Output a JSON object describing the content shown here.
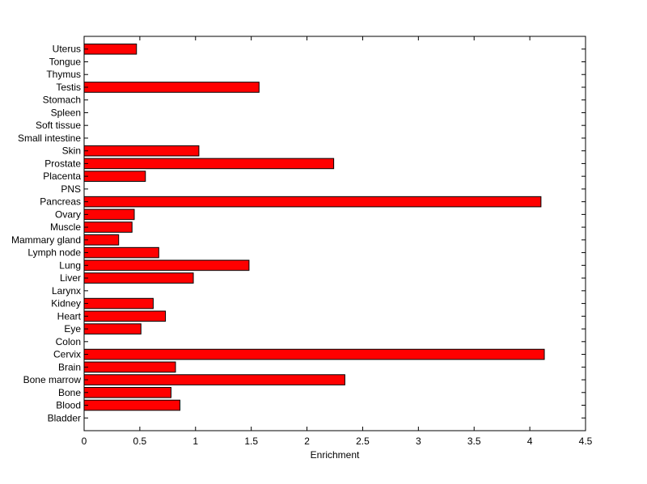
{
  "chart_data": {
    "type": "bar",
    "orientation": "horizontal",
    "title": "",
    "xlabel": "Enrichment",
    "ylabel": "",
    "xlim": [
      0,
      4.5
    ],
    "xticks": [
      0,
      0.5,
      1,
      1.5,
      2,
      2.5,
      3,
      3.5,
      4,
      4.5
    ],
    "xtick_labels": [
      "0",
      "0.5",
      "1",
      "1.5",
      "2",
      "2.5",
      "3",
      "3.5",
      "4",
      "4.5"
    ],
    "grid": false,
    "legend": "none",
    "bar_color": "#ff0000",
    "bar_edge_color": "#000000",
    "categories": [
      "Bladder",
      "Blood",
      "Bone",
      "Bone marrow",
      "Brain",
      "Cervix",
      "Colon",
      "Eye",
      "Heart",
      "Kidney",
      "Larynx",
      "Liver",
      "Lung",
      "Lymph node",
      "Mammary gland",
      "Muscle",
      "Ovary",
      "Pancreas",
      "PNS",
      "Placenta",
      "Prostate",
      "Skin",
      "Small intestine",
      "Soft tissue",
      "Spleen",
      "Stomach",
      "Testis",
      "Thymus",
      "Tongue",
      "Uterus"
    ],
    "values": [
      0,
      0.86,
      0.78,
      2.34,
      0.82,
      4.13,
      0,
      0.51,
      0.73,
      0.62,
      0,
      0.98,
      1.48,
      0.67,
      0.31,
      0.43,
      0.45,
      4.1,
      0,
      0.55,
      2.24,
      1.03,
      0,
      0,
      0,
      0,
      1.57,
      0,
      0,
      0.47
    ]
  }
}
